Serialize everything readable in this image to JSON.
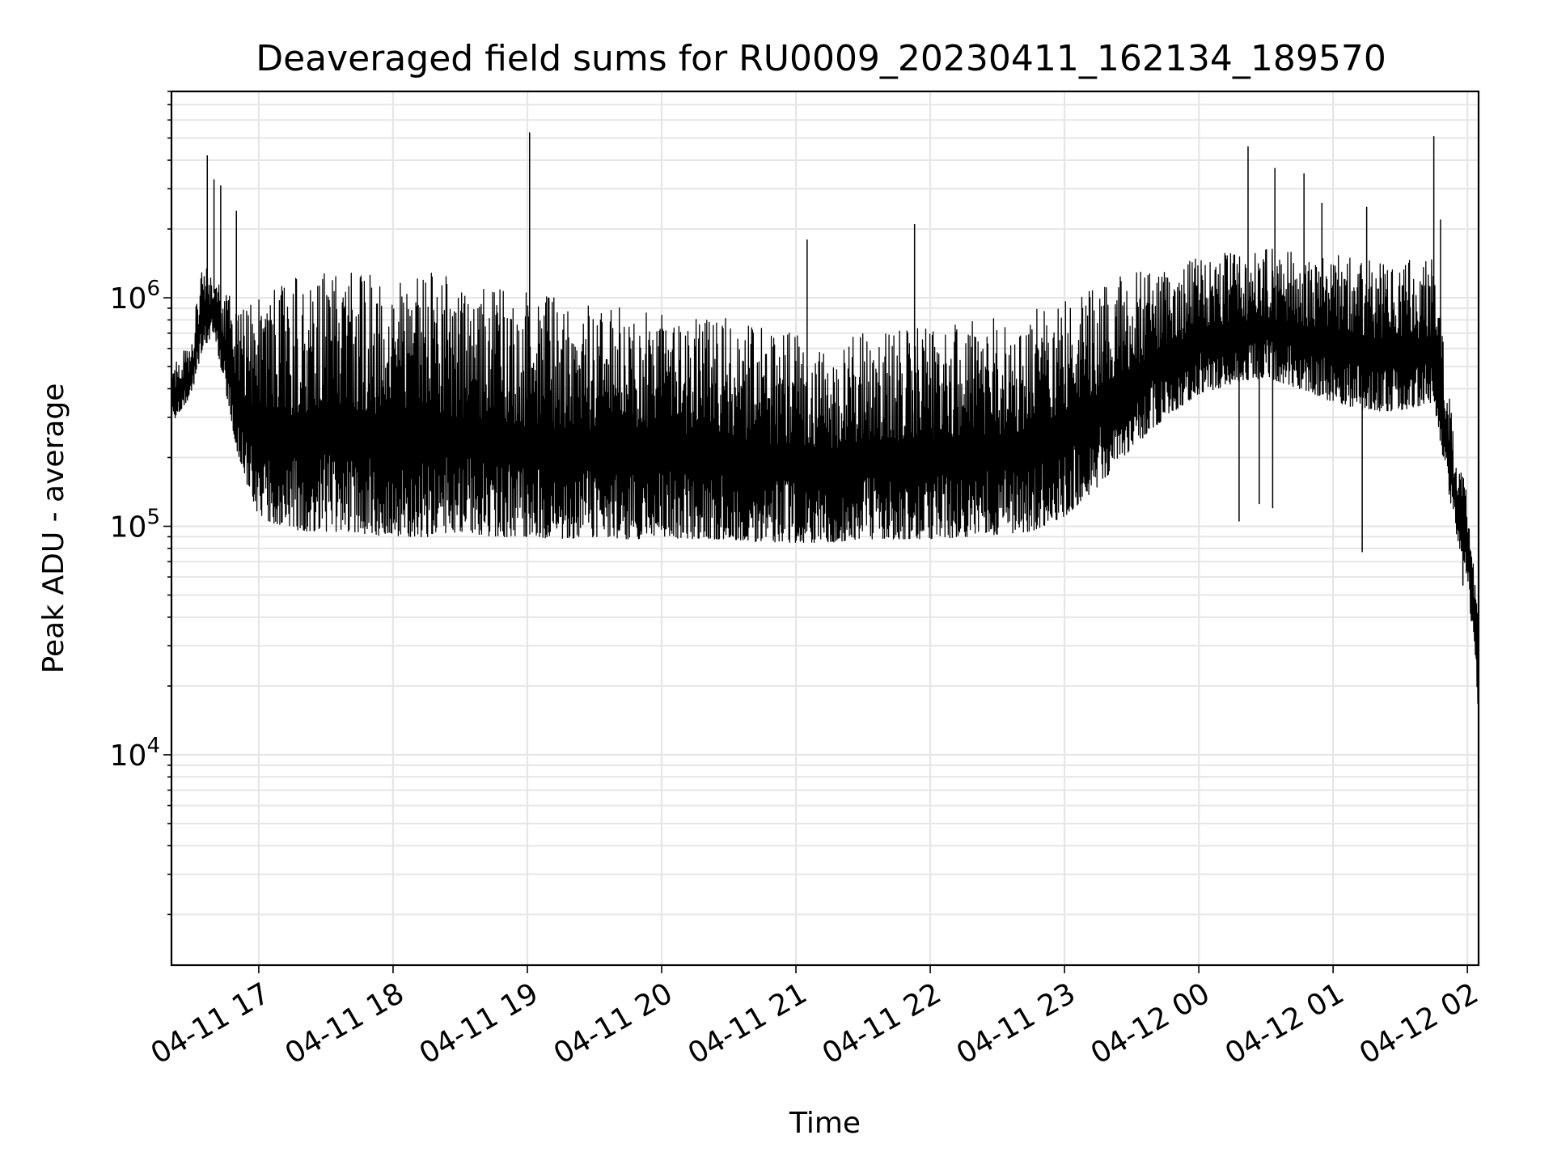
{
  "chart_data": {
    "type": "line",
    "title": "Deaveraged field sums for RU0009_20230411_162134_189570",
    "xlabel": "Time",
    "ylabel": "Peak ADU - average",
    "y_scale": "log",
    "grid": true,
    "x_tick_labels": [
      "04-11 17",
      "04-11 18",
      "04-11 19",
      "04-11 20",
      "04-11 21",
      "04-11 22",
      "04-11 23",
      "04-12 00",
      "04-12 01",
      "04-12 02"
    ],
    "y_tick_exponents": [
      "4",
      "5",
      "6"
    ],
    "xlim": [
      "2023-04-11 16:21",
      "2023-04-12 02:05"
    ],
    "ylim": [
      1200,
      8000000
    ],
    "line_color": "#000000",
    "grid_color": "#e6e6e6",
    "series": [
      {
        "x": [
          "2023-04-11 16:21",
          "2023-04-11 16:30",
          "2023-04-11 16:35",
          "2023-04-11 16:40",
          "2023-04-11 16:45",
          "2023-04-11 16:50",
          "2023-04-11 16:55",
          "2023-04-11 17:00",
          "2023-04-11 17:10",
          "2023-04-11 17:20",
          "2023-04-11 17:30",
          "2023-04-11 17:40",
          "2023-04-11 17:50",
          "2023-04-11 18:00",
          "2023-04-11 18:15",
          "2023-04-11 18:30",
          "2023-04-11 18:45",
          "2023-04-11 19:00",
          "2023-04-11 19:15",
          "2023-04-11 19:30",
          "2023-04-11 19:45",
          "2023-04-11 20:00",
          "2023-04-11 20:15",
          "2023-04-11 20:30",
          "2023-04-11 20:45",
          "2023-04-11 21:00",
          "2023-04-11 21:15",
          "2023-04-11 21:30",
          "2023-04-11 21:45",
          "2023-04-11 22:00",
          "2023-04-11 22:15",
          "2023-04-11 22:30",
          "2023-04-11 22:45",
          "2023-04-11 23:00",
          "2023-04-11 23:15",
          "2023-04-11 23:30",
          "2023-04-11 23:45",
          "2023-04-12 00:00",
          "2023-04-12 00:15",
          "2023-04-12 00:30",
          "2023-04-12 00:45",
          "2023-04-12 01:00",
          "2023-04-12 01:15",
          "2023-04-12 01:30",
          "2023-04-12 01:45",
          "2023-04-12 01:55",
          "2023-04-12 02:00",
          "2023-04-12 02:05"
        ],
        "low": [
          280000,
          380000,
          600000,
          700000,
          400000,
          220000,
          150000,
          110000,
          100000,
          95000,
          95000,
          95000,
          92000,
          90000,
          90000,
          95000,
          90000,
          90000,
          88000,
          90000,
          88000,
          88000,
          88000,
          88000,
          85000,
          85000,
          85000,
          88000,
          88000,
          88000,
          90000,
          92000,
          95000,
          110000,
          150000,
          220000,
          300000,
          380000,
          420000,
          450000,
          400000,
          350000,
          320000,
          320000,
          350000,
          90000,
          60000,
          15000
        ],
        "high": [
          500000,
          650000,
          1600000,
          1200000,
          1100000,
          900000,
          1000000,
          1100000,
          1200000,
          1250000,
          1300000,
          1350000,
          1300000,
          1300000,
          1300000,
          1200000,
          1100000,
          1050000,
          1000000,
          950000,
          900000,
          880000,
          850000,
          820000,
          750000,
          700000,
          680000,
          700000,
          720000,
          750000,
          800000,
          850000,
          900000,
          1000000,
          1150000,
          1300000,
          1400000,
          1500000,
          1600000,
          1650000,
          1600000,
          1550000,
          1500000,
          1450000,
          1500000,
          200000,
          150000,
          40000
        ],
        "spikes": [
          {
            "x": "2023-04-11 16:37",
            "y": 4200000
          },
          {
            "x": "2023-04-11 16:40",
            "y": 3300000
          },
          {
            "x": "2023-04-11 16:43",
            "y": 3100000
          },
          {
            "x": "2023-04-11 16:50",
            "y": 2400000
          },
          {
            "x": "2023-04-11 19:01",
            "y": 5300000
          },
          {
            "x": "2023-04-11 21:05",
            "y": 1800000
          },
          {
            "x": "2023-04-11 21:53",
            "y": 2100000
          },
          {
            "x": "2023-04-12 00:22",
            "y": 4600000
          },
          {
            "x": "2023-04-12 00:34",
            "y": 3700000
          },
          {
            "x": "2023-04-12 00:47",
            "y": 3500000
          },
          {
            "x": "2023-04-12 00:55",
            "y": 2600000
          },
          {
            "x": "2023-04-12 01:15",
            "y": 2500000
          },
          {
            "x": "2023-04-12 01:45",
            "y": 5100000
          },
          {
            "x": "2023-04-12 01:48",
            "y": 2200000
          }
        ],
        "dips": [
          {
            "x": "2023-04-12 00:27",
            "y": 125000
          },
          {
            "x": "2023-04-12 00:33",
            "y": 120000
          },
          {
            "x": "2023-04-12 00:18",
            "y": 105000
          },
          {
            "x": "2023-04-12 01:13",
            "y": 77000
          },
          {
            "x": "2023-04-12 01:58",
            "y": 55000
          },
          {
            "x": "2023-04-12 02:04",
            "y": 28000
          }
        ]
      }
    ]
  }
}
